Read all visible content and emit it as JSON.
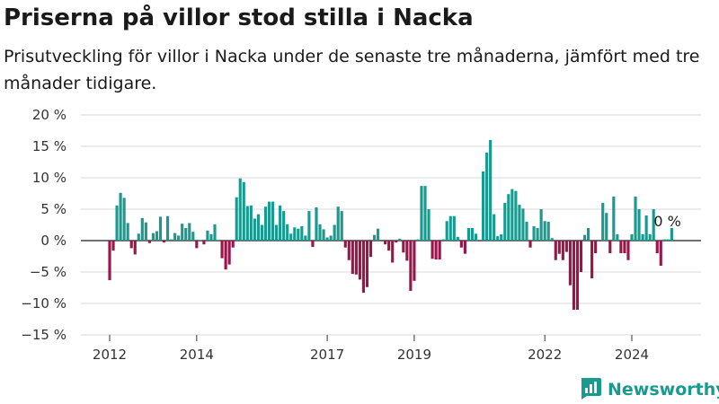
{
  "header": {
    "title": "Priserna på villor stod stilla i Nacka",
    "subtitle": "Prisutveckling för villor i Nacka under de senaste tre månaderna, jämfört med tre månader tidigare."
  },
  "brand": {
    "name": "Newsworthy",
    "icon": "newsworthy-logo-icon",
    "color": "#1a9a8f"
  },
  "chart_data": {
    "type": "bar",
    "title": "Priserna på villor stod stilla i Nacka",
    "subtitle": "Prisutveckling för villor i Nacka under de senaste tre månaderna, jämfört med tre månader tidigare.",
    "xlabel": "",
    "ylabel": "",
    "ylim": [
      -15,
      20
    ],
    "y_ticks": [
      20,
      15,
      10,
      5,
      0,
      -5,
      -10,
      -15
    ],
    "y_tick_labels": [
      "20 %",
      "15 %",
      "10 %",
      "5 %",
      "0 %",
      "−5 %",
      "−10 %",
      "−15 %"
    ],
    "x_tick_labels": [
      "2012",
      "2014",
      "2017",
      "2019",
      "2022",
      "2024"
    ],
    "x_tick_dates": [
      "2012-01",
      "2014-01",
      "2017-01",
      "2019-01",
      "2022-01",
      "2024-01"
    ],
    "start_month": "2012-01",
    "grid": true,
    "colors": {
      "positive": "#1a9a8f",
      "negative": "#98164b"
    },
    "annotation": {
      "text": "0 %",
      "month": "2024-10"
    },
    "values": [
      -6.3,
      -1.6,
      5.6,
      7.6,
      6.8,
      2.8,
      -1.2,
      -2.2,
      1.1,
      3.6,
      2.9,
      -0.4,
      1.2,
      1.5,
      3.8,
      -0.3,
      3.9,
      0.2,
      1.2,
      0.8,
      2.7,
      2.0,
      2.8,
      1.4,
      -1.2,
      0.1,
      -0.6,
      1.6,
      1.0,
      2.6,
      0.1,
      -2.8,
      -4.6,
      -3.8,
      -1.1,
      6.9,
      9.9,
      9.3,
      5.5,
      5.6,
      3.5,
      4.2,
      2.5,
      5.4,
      6.2,
      6.2,
      2.5,
      5.6,
      4.7,
      2.6,
      1.1,
      2.1,
      1.9,
      2.3,
      0.8,
      4.7,
      -1.0,
      5.3,
      2.6,
      1.8,
      0.5,
      0.8,
      2.5,
      5.4,
      4.7,
      -1.1,
      -3.1,
      -5.3,
      -5.4,
      -6.2,
      -8.3,
      -7.4,
      -2.6,
      0.9,
      1.9,
      -0.1,
      -0.6,
      -1.6,
      -3.5,
      -0.3,
      0.3,
      -1.9,
      -3.2,
      -8.0,
      -6.4,
      0.2,
      8.7,
      8.7,
      5.0,
      -2.9,
      -3.0,
      -3.0,
      0.2,
      3.1,
      3.9,
      3.9,
      0.6,
      -1.1,
      -2.1,
      2.0,
      2.0,
      1.1,
      -0.1,
      11.0,
      14.0,
      16.0,
      4.2,
      0.7,
      1.0,
      6.0,
      7.4,
      8.2,
      7.9,
      5.7,
      5.1,
      3.0,
      -1.1,
      2.3,
      2.0,
      5.0,
      3.1,
      3.0,
      0.4,
      -3.1,
      -2.1,
      -3.1,
      -1.8,
      -7.1,
      -11.0,
      -11.0,
      -5.0,
      0.9,
      2.0,
      -6.0,
      -2.0,
      -0.1,
      6.0,
      4.4,
      -2.0,
      7.0,
      1.0,
      -2.0,
      -2.0,
      -3.1,
      1.0,
      7.0,
      5.0,
      1.0,
      4.0,
      1.0,
      5.0,
      -2.0,
      -4.0,
      0.2,
      0.2,
      2.0
    ]
  }
}
